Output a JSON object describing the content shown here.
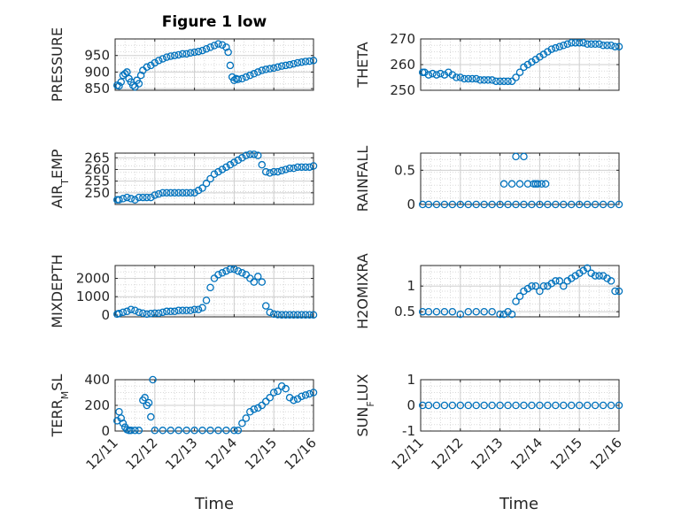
{
  "figure": {
    "title": "Figure 1 low",
    "xlabel": "Time",
    "xticks": [
      "12/11",
      "12/12",
      "12/13",
      "12/14",
      "12/15",
      "12/16"
    ],
    "marker_color": "#0072BD",
    "marker": "open-circle"
  },
  "chart_data": [
    {
      "type": "scatter",
      "ylabel": "PRESSURE",
      "title": "Figure 1 low",
      "xlabel": "",
      "xlim": [
        0,
        5
      ],
      "ylim": [
        845,
        1000
      ],
      "yticks": [
        850,
        900,
        950
      ],
      "grid": true,
      "x": [
        0.05,
        0.1,
        0.15,
        0.2,
        0.25,
        0.3,
        0.35,
        0.4,
        0.45,
        0.5,
        0.55,
        0.6,
        0.65,
        0.7,
        0.8,
        0.9,
        1.0,
        1.1,
        1.2,
        1.3,
        1.4,
        1.5,
        1.6,
        1.7,
        1.8,
        1.9,
        2.0,
        2.1,
        2.2,
        2.3,
        2.4,
        2.5,
        2.6,
        2.7,
        2.8,
        2.85,
        2.9,
        2.95,
        3.0,
        3.05,
        3.1,
        3.2,
        3.3,
        3.4,
        3.5,
        3.6,
        3.7,
        3.8,
        3.9,
        4.0,
        4.1,
        4.2,
        4.3,
        4.4,
        4.5,
        4.6,
        4.7,
        4.8,
        4.9,
        5.0
      ],
      "y": [
        860,
        858,
        870,
        890,
        895,
        900,
        880,
        870,
        860,
        855,
        875,
        865,
        890,
        905,
        915,
        920,
        928,
        935,
        940,
        945,
        948,
        950,
        952,
        955,
        955,
        958,
        960,
        962,
        965,
        970,
        975,
        980,
        985,
        982,
        975,
        960,
        920,
        885,
        875,
        880,
        878,
        880,
        885,
        890,
        895,
        900,
        905,
        908,
        910,
        912,
        915,
        918,
        920,
        922,
        925,
        928,
        930,
        932,
        933,
        935
      ]
    },
    {
      "type": "scatter",
      "ylabel": "THETA",
      "xlabel": "",
      "xlim": [
        0,
        5
      ],
      "ylim": [
        250,
        270
      ],
      "yticks": [
        250,
        260,
        270
      ],
      "grid": true,
      "x": [
        0.05,
        0.1,
        0.2,
        0.3,
        0.4,
        0.5,
        0.6,
        0.7,
        0.8,
        0.9,
        1.0,
        1.1,
        1.2,
        1.3,
        1.4,
        1.5,
        1.6,
        1.7,
        1.8,
        1.9,
        2.0,
        2.1,
        2.2,
        2.3,
        2.4,
        2.5,
        2.6,
        2.7,
        2.8,
        2.9,
        3.0,
        3.1,
        3.2,
        3.3,
        3.4,
        3.5,
        3.6,
        3.7,
        3.8,
        3.9,
        4.0,
        4.1,
        4.2,
        4.3,
        4.4,
        4.5,
        4.6,
        4.7,
        4.8,
        4.9,
        5.0
      ],
      "y": [
        257,
        257,
        256,
        256.5,
        256,
        256.5,
        256,
        257,
        256,
        255,
        255,
        254.5,
        254.5,
        254.5,
        254.5,
        254,
        254,
        254,
        254,
        253.5,
        253.5,
        253.5,
        253.5,
        253.5,
        255,
        257,
        259,
        260,
        261,
        262,
        263,
        264,
        265,
        266,
        266.5,
        267,
        267.5,
        268,
        268.5,
        268.5,
        268.5,
        268.5,
        268,
        268,
        268,
        268,
        267.5,
        267.5,
        267.5,
        267,
        267
      ]
    },
    {
      "type": "scatter",
      "ylabel": "AIR_TEMP",
      "xlabel": "",
      "xlim": [
        0,
        5
      ],
      "ylim": [
        245,
        267
      ],
      "yticks": [
        250,
        255,
        260,
        265
      ],
      "grid": true,
      "x": [
        0.05,
        0.1,
        0.2,
        0.3,
        0.4,
        0.5,
        0.6,
        0.7,
        0.8,
        0.9,
        1.0,
        1.1,
        1.2,
        1.3,
        1.4,
        1.5,
        1.6,
        1.7,
        1.8,
        1.9,
        2.0,
        2.1,
        2.2,
        2.3,
        2.4,
        2.5,
        2.6,
        2.7,
        2.8,
        2.9,
        3.0,
        3.1,
        3.2,
        3.3,
        3.4,
        3.5,
        3.6,
        3.7,
        3.8,
        3.9,
        4.0,
        4.1,
        4.2,
        4.3,
        4.4,
        4.5,
        4.6,
        4.7,
        4.8,
        4.9,
        5.0
      ],
      "y": [
        247,
        247,
        247.5,
        248,
        247.5,
        247,
        248,
        248,
        248,
        248,
        249,
        249.5,
        250,
        250,
        250,
        250,
        250,
        250,
        250,
        250,
        250,
        251,
        252,
        254,
        256,
        258,
        259,
        260,
        261,
        262,
        263,
        264,
        265,
        266,
        266.5,
        266.5,
        266,
        262,
        259,
        258.5,
        259,
        259,
        259.5,
        260,
        260.5,
        260.5,
        261,
        261,
        261,
        261,
        261.5
      ]
    },
    {
      "type": "scatter",
      "ylabel": "RAINFALL",
      "xlabel": "",
      "xlim": [
        0,
        5
      ],
      "ylim": [
        0,
        0.75
      ],
      "yticks": [
        0,
        0.5
      ],
      "grid": true,
      "x": [
        0.05,
        0.2,
        0.4,
        0.6,
        0.8,
        1.0,
        1.2,
        1.4,
        1.6,
        1.8,
        2.0,
        2.2,
        2.4,
        2.6,
        2.8,
        3.0,
        3.2,
        3.4,
        3.6,
        3.8,
        4.0,
        4.2,
        4.4,
        4.6,
        4.8,
        5.0,
        2.4,
        2.6,
        2.5,
        2.9,
        3.05,
        2.1,
        2.3,
        2.7,
        2.85,
        2.95,
        3.15
      ],
      "y": [
        0,
        0,
        0,
        0,
        0,
        0,
        0,
        0,
        0,
        0,
        0,
        0,
        0,
        0,
        0,
        0,
        0,
        0,
        0,
        0,
        0,
        0,
        0,
        0,
        0,
        0,
        0.7,
        0.7,
        0.3,
        0.3,
        0.3,
        0.3,
        0.3,
        0.3,
        0.3,
        0.3,
        0.3
      ]
    },
    {
      "type": "scatter",
      "ylabel": "MIXDEPTH",
      "xlabel": "",
      "xlim": [
        0,
        5
      ],
      "ylim": [
        -100,
        2700
      ],
      "yticks": [
        0,
        1000,
        2000
      ],
      "grid": true,
      "x": [
        0.05,
        0.1,
        0.2,
        0.3,
        0.4,
        0.5,
        0.6,
        0.7,
        0.8,
        0.9,
        1.0,
        1.1,
        1.2,
        1.3,
        1.4,
        1.5,
        1.6,
        1.7,
        1.8,
        1.9,
        2.0,
        2.1,
        2.2,
        2.3,
        2.4,
        2.5,
        2.6,
        2.7,
        2.8,
        2.9,
        3.0,
        3.1,
        3.2,
        3.3,
        3.4,
        3.5,
        3.6,
        3.7,
        3.8,
        3.9,
        4.0,
        4.1,
        4.2,
        4.3,
        4.4,
        4.5,
        4.6,
        4.7,
        4.8,
        4.9,
        5.0
      ],
      "y": [
        50,
        80,
        150,
        200,
        300,
        250,
        150,
        100,
        50,
        80,
        100,
        100,
        150,
        200,
        200,
        200,
        250,
        250,
        250,
        250,
        300,
        300,
        400,
        800,
        1500,
        2000,
        2200,
        2300,
        2400,
        2500,
        2500,
        2400,
        2300,
        2200,
        2000,
        1800,
        2100,
        1800,
        500,
        150,
        50,
        20,
        10,
        10,
        10,
        10,
        10,
        10,
        10,
        10,
        10
      ]
    },
    {
      "type": "scatter",
      "ylabel": "H2OMIXRA",
      "xlabel": "",
      "xlim": [
        0,
        5
      ],
      "ylim": [
        0.4,
        1.4
      ],
      "yticks": [
        0.5,
        1
      ],
      "grid": true,
      "x": [
        0.05,
        0.2,
        0.4,
        0.6,
        0.8,
        1.0,
        1.2,
        1.4,
        1.6,
        1.8,
        2.0,
        2.1,
        2.2,
        2.3,
        2.4,
        2.5,
        2.6,
        2.7,
        2.8,
        2.9,
        3.0,
        3.1,
        3.2,
        3.3,
        3.4,
        3.5,
        3.6,
        3.7,
        3.8,
        3.9,
        4.0,
        4.1,
        4.2,
        4.3,
        4.4,
        4.5,
        4.6,
        4.7,
        4.8,
        4.9,
        5.0
      ],
      "y": [
        0.5,
        0.5,
        0.5,
        0.5,
        0.5,
        0.45,
        0.5,
        0.5,
        0.5,
        0.5,
        0.45,
        0.45,
        0.5,
        0.45,
        0.7,
        0.8,
        0.9,
        0.95,
        1.0,
        1.0,
        0.9,
        1.0,
        1.0,
        1.05,
        1.1,
        1.1,
        1.0,
        1.1,
        1.15,
        1.2,
        1.25,
        1.3,
        1.35,
        1.25,
        1.2,
        1.2,
        1.2,
        1.15,
        1.1,
        0.9,
        0.9
      ]
    },
    {
      "type": "scatter",
      "ylabel": "TERR_MSL",
      "xlabel": "",
      "xlim": [
        0,
        5
      ],
      "ylim": [
        0,
        400
      ],
      "yticks": [
        0,
        200,
        400
      ],
      "grid": true,
      "xticks": [
        "12/11",
        "12/12",
        "12/13",
        "12/14",
        "12/15",
        "12/16"
      ],
      "x": [
        0.05,
        0.1,
        0.15,
        0.2,
        0.25,
        0.3,
        0.35,
        0.4,
        0.5,
        0.6,
        0.7,
        0.75,
        0.8,
        0.85,
        0.9,
        0.95,
        1.0,
        1.2,
        1.4,
        1.6,
        1.8,
        2.0,
        2.2,
        2.4,
        2.6,
        2.8,
        3.0,
        3.1,
        3.2,
        3.3,
        3.4,
        3.5,
        3.6,
        3.7,
        3.8,
        3.9,
        4.0,
        4.1,
        4.2,
        4.3,
        4.4,
        4.5,
        4.6,
        4.7,
        4.8,
        4.9,
        5.0
      ],
      "y": [
        80,
        150,
        100,
        60,
        30,
        10,
        5,
        5,
        5,
        5,
        240,
        260,
        200,
        220,
        110,
        400,
        5,
        5,
        5,
        5,
        5,
        5,
        5,
        5,
        5,
        5,
        5,
        5,
        60,
        100,
        150,
        170,
        180,
        200,
        230,
        260,
        300,
        310,
        350,
        330,
        260,
        240,
        250,
        270,
        280,
        290,
        300
      ]
    },
    {
      "type": "scatter",
      "ylabel": "SUN_FLUX",
      "xlabel": "",
      "xlim": [
        0,
        5
      ],
      "ylim": [
        -1,
        1
      ],
      "yticks": [
        -1,
        0,
        1
      ],
      "grid": true,
      "xticks": [
        "12/11",
        "12/12",
        "12/13",
        "12/14",
        "12/15",
        "12/16"
      ],
      "x": [
        0.05,
        0.2,
        0.4,
        0.6,
        0.8,
        1.0,
        1.2,
        1.4,
        1.6,
        1.8,
        2.0,
        2.2,
        2.4,
        2.6,
        2.8,
        3.0,
        3.2,
        3.4,
        3.6,
        3.8,
        4.0,
        4.2,
        4.4,
        4.6,
        4.8,
        5.0
      ],
      "y": [
        0,
        0,
        0,
        0,
        0,
        0,
        0,
        0,
        0,
        0,
        0,
        0,
        0,
        0,
        0,
        0,
        0,
        0,
        0,
        0,
        0,
        0,
        0,
        0,
        0,
        0
      ]
    }
  ]
}
